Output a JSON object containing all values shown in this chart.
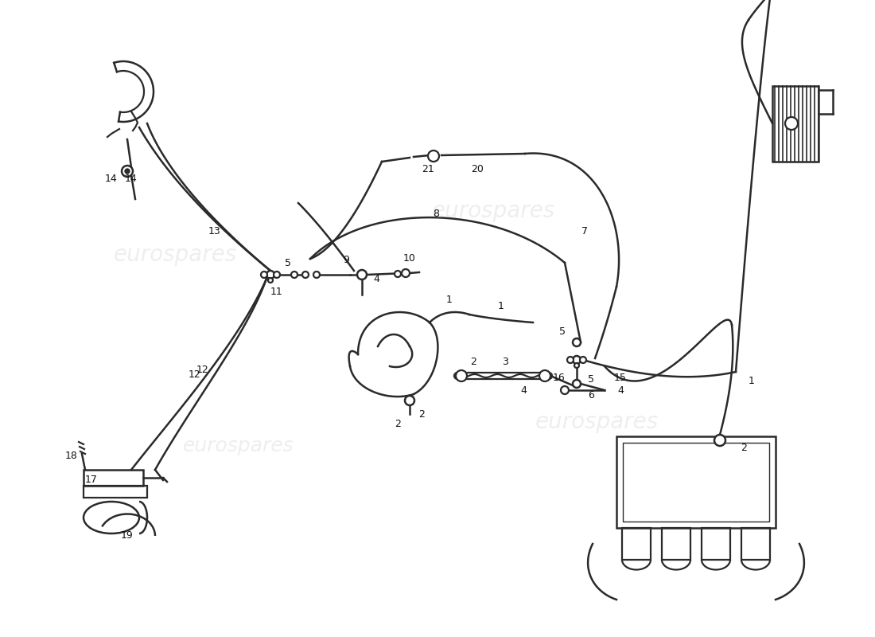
{
  "background_color": "#ffffff",
  "line_color": "#2a2a2a",
  "watermark_color": "#d0d0d0",
  "watermark_text": "eurospares",
  "fig_width": 11.0,
  "fig_height": 8.0,
  "dpi": 100
}
